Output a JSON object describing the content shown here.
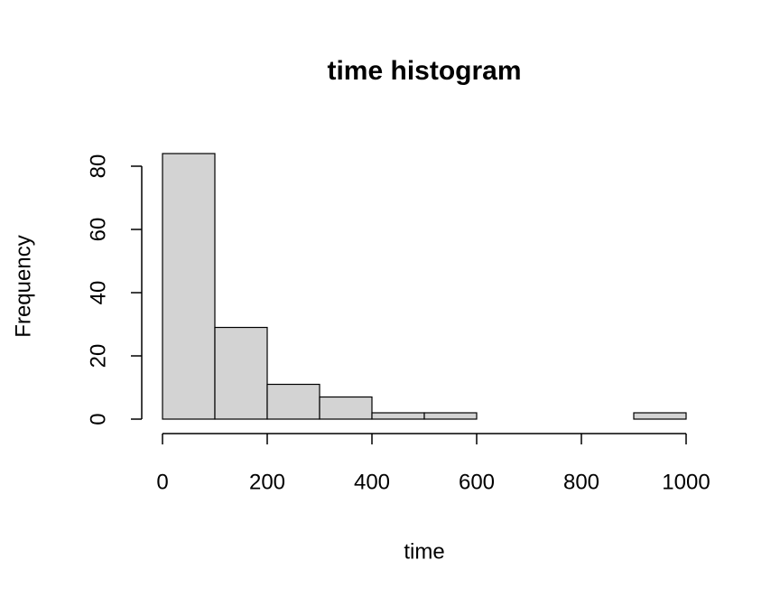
{
  "chart_data": {
    "type": "histogram",
    "title": "time histogram",
    "x_label": "time",
    "y_label": "Frequency",
    "bins": [
      0,
      100,
      200,
      300,
      400,
      500,
      600,
      700,
      800,
      900,
      1000
    ],
    "counts": [
      84,
      29,
      11,
      7,
      2,
      2,
      0,
      0,
      0,
      2
    ],
    "color": "#d3d3d3",
    "xlim": [
      0,
      1000
    ],
    "xticks": [
      0,
      200,
      400,
      600,
      800,
      1000
    ],
    "ylim": [
      0,
      84
    ],
    "yticks": [
      0,
      20,
      40,
      60,
      80
    ]
  }
}
